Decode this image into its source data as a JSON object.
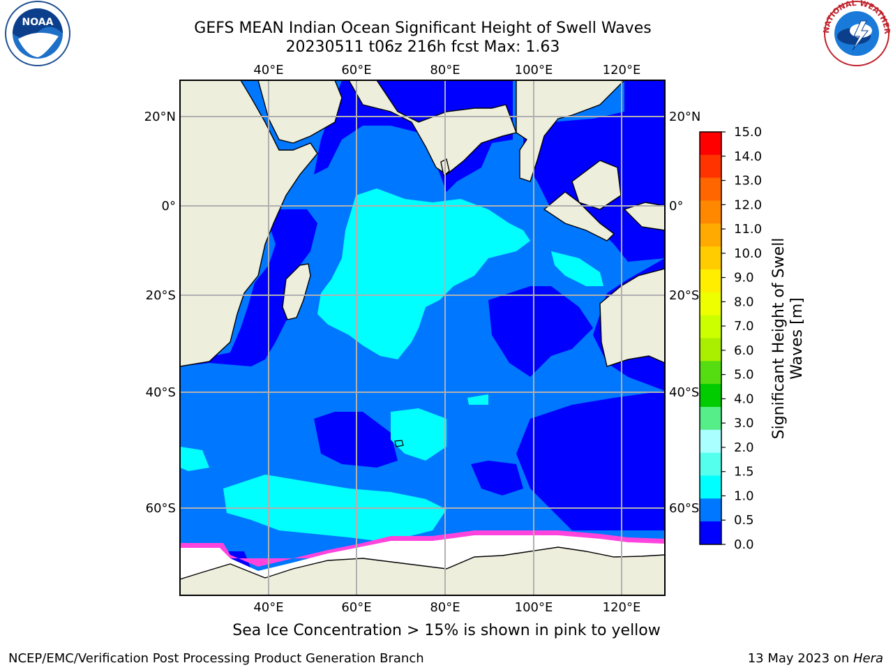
{
  "title": {
    "line1": "GEFS MEAN Indian Ocean Significant Height of Swell Waves",
    "line2": "20230511 t06z 216h fcst   Max: 1.63"
  },
  "map": {
    "lon_labels": [
      "40°E",
      "60°E",
      "80°E",
      "100°E",
      "120°E"
    ],
    "lat_labels": [
      "20°N",
      "0°",
      "20°S",
      "40°S",
      "60°S"
    ],
    "ocean_color": "#0077ff",
    "land_color": "#eeeedd",
    "ice_color": "#ffffff",
    "gridline_color": "#b0b0b0"
  },
  "colorbar": {
    "label": "Significant Height of Swell Waves [m]",
    "ticks": [
      "15.0",
      "14.0",
      "13.0",
      "12.0",
      "11.0",
      "10.0",
      "9.0",
      "8.0",
      "7.0",
      "6.0",
      "5.0",
      "4.0",
      "3.0",
      "2.0",
      "1.5",
      "1.0",
      "0.5",
      "0.0"
    ],
    "colors": [
      "#ff0000",
      "#ff3300",
      "#ff6600",
      "#ff8800",
      "#ffaa00",
      "#ffcc00",
      "#ffee00",
      "#eeff00",
      "#ccff00",
      "#aaee00",
      "#55dd11",
      "#00cc00",
      "#55ee88",
      "#aaffff",
      "#55ffee",
      "#00ffff",
      "#0077ff",
      "#0000ff"
    ]
  },
  "note": "Sea Ice Concentration > 15% is shown in pink to yellow",
  "footer": {
    "left": "NCEP/EMC/Verification Post Processing Product Generation Branch",
    "date": "13 May 2023 on ",
    "machine": "Hera"
  },
  "logos": {
    "noaa": "NOAA",
    "nws": "NATIONAL WEATHER SERVICE"
  }
}
